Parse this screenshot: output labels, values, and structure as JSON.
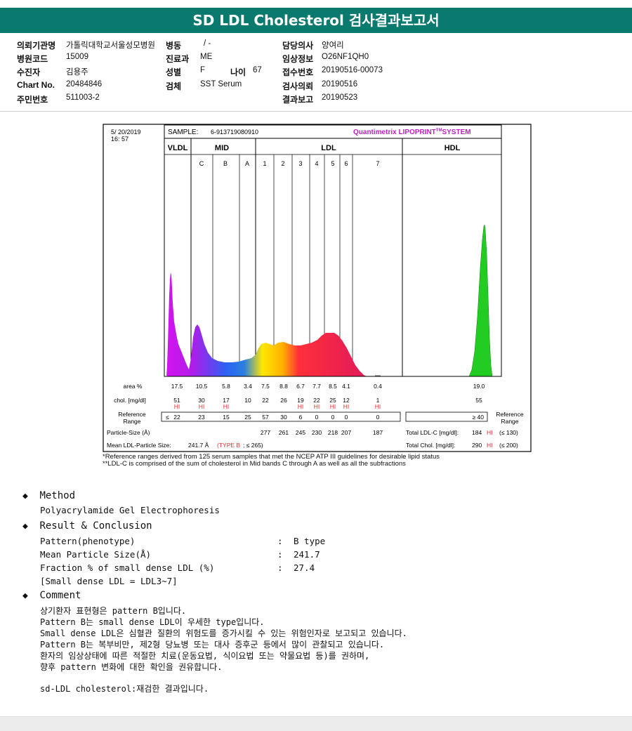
{
  "report": {
    "title": "SD LDL Cholesterol 검사결과보고서",
    "patient": {
      "institution_label": "의뢰기관명",
      "institution": "가톨릭대학교서울성모병원",
      "ward_label": "병동",
      "ward": "/ -",
      "doctor_label": "담당의사",
      "doctor": "양여리",
      "hospital_code_label": "병원코드",
      "hospital_code": "15009",
      "dept_label": "진료과",
      "dept": "ME",
      "clinical_label": "임상정보",
      "clinical": "O26NF1QH0",
      "examinee_label": "수진자",
      "examinee": "김용주",
      "sex_label": "성별",
      "sex": "F",
      "age_label": "나이",
      "age": "67",
      "receipt_label": "접수번호",
      "receipt": "20190516-00073",
      "chart_label": "Chart No.",
      "chart": "20484846",
      "specimen_label": "검체",
      "specimen": "SST Serum",
      "request_label": "검사의뢰",
      "request_date": "20190516",
      "id_label": "주민번호",
      "id": "511003-2",
      "result_label": "결과보고",
      "result_date": "20190523"
    }
  },
  "lipoprint": {
    "date": "5/ 20/2019",
    "time": "16: 57",
    "sample_label": "SAMPLE:",
    "sample": "6-913719080910",
    "brand": "Quantimetrix LIPOPRINT",
    "brand_tm": "TM",
    "brand_suffix": "SYSTEM",
    "group_vldl": "VLDL",
    "group_mid": "MID",
    "group_ldl": "LDL",
    "group_hdl": "HDL",
    "bands": [
      "C",
      "B",
      "A",
      "1",
      "2",
      "3",
      "4",
      "5",
      "6",
      "7"
    ],
    "area_label": "area %",
    "chol_label": "chol. [mg/dl]",
    "ref_label_1": "Reference",
    "ref_label_2": "Range",
    "ref_right_1": "Reference",
    "ref_right_2": "Range",
    "particle_label": "Particle-Size (Å)",
    "mean_size_label": "Mean LDL-Particle Size:",
    "mean_size": "241.7 Å",
    "mean_type": "(TYPE B",
    "mean_type_ref": "; ≤ 265)",
    "total_ldl_label": "Total LDL-C [mg/dl]:",
    "total_ldl": "184",
    "total_ldl_flag": "HI",
    "total_ldl_ref": "(≤ 130)",
    "total_chol_label": "Total Chol. [mg/dl]:",
    "total_chol": "290",
    "total_chol_flag": "HI",
    "total_chol_ref": "(≤ 200)",
    "hdl_ref": "≥ 40",
    "hi": "HI",
    "ref_le": "≤",
    "columns": [
      "VLDL",
      "C",
      "B",
      "A",
      "1",
      "2",
      "3",
      "4",
      "5",
      "6",
      "7",
      "HDL"
    ],
    "area": [
      "17.5",
      "10.5",
      "5.8",
      "3.4",
      "7.5",
      "8.8",
      "6.7",
      "7.7",
      "8.5",
      "4.1",
      "0.4",
      "19.0"
    ],
    "chol": [
      "51",
      "30",
      "17",
      "10",
      "22",
      "26",
      "19",
      "22",
      "25",
      "12",
      "1",
      "55"
    ],
    "chol_hi": [
      true,
      true,
      true,
      false,
      false,
      false,
      true,
      true,
      true,
      true,
      true,
      false
    ],
    "ref": [
      "22",
      "23",
      "15",
      "25",
      "57",
      "30",
      "6",
      "0",
      "0",
      "0",
      "0"
    ],
    "particle": [
      "277",
      "261",
      "245",
      "230",
      "218",
      "207",
      "187"
    ]
  },
  "footnotes": {
    "line1": "*Reference ranges derived from 125 serum samples that met the NCEP ATP III guidelines for desirable lipid status",
    "line2": "**LDL-C is comprised of the sum of cholesterol in Mid bands C through A as well as all the subfractions"
  },
  "method": {
    "heading": "Method",
    "text": "Polyacrylamide Gel Electrophoresis"
  },
  "result": {
    "heading": "Result & Conclusion",
    "pattern_label": "Pattern(phenotype)",
    "pattern_value": "B type",
    "size_label": "Mean Particle Size(Å)",
    "size_value": "241.7",
    "fraction_label": "Fraction % of small dense LDL (%)",
    "fraction_value": "27.4",
    "note": "[Small dense LDL = LDL3~7]",
    "colon": ":"
  },
  "comment": {
    "heading": "Comment",
    "lines": [
      "상기환자 표현형은 pattern B입니다.",
      "Pattern B는 small dense LDL이 우세한 type입니다.",
      "Small dense LDL은 심혈관 질환의 위험도를 증가시킬 수 있는 위험인자로 보고되고 있습니다.",
      "Pattern B는 복부비만, 제2형 당뇨병 또는 대사 증후군 등에서 많이 관찰되고 있습니다.",
      "환자의 임상상태에 따른 적절한 치료(운동요법, 식이요법 또는 약물요법 등)를 권하며,",
      "향후 pattern 변화에 대한 확인을 권유합니다."
    ],
    "recheck": "sd-LDL cholesterol:재검한 결과입니다."
  },
  "colors": {
    "header": "#0a7a6e",
    "hi": "#e53030",
    "brand": "#c020c0",
    "type_b": "#e53030"
  }
}
